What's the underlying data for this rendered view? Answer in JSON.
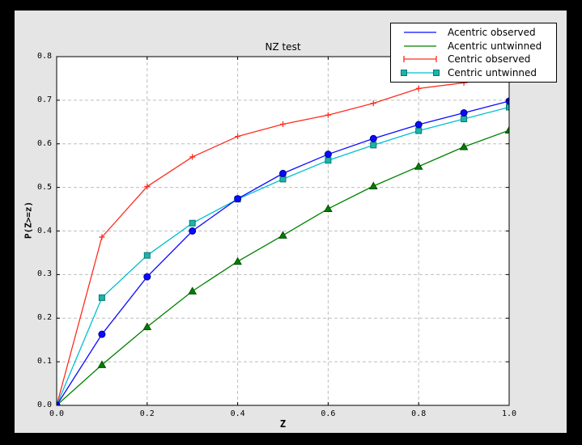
{
  "chart_data": {
    "type": "line",
    "title": "NZ test",
    "xlabel": "Z",
    "ylabel": "P(Z>=z)",
    "xlim": [
      0.0,
      1.0
    ],
    "ylim": [
      0.0,
      0.8
    ],
    "x_tick_values": [
      0.0,
      0.2,
      0.4,
      0.6,
      0.8,
      1.0
    ],
    "x_tick_labels": [
      "0.0",
      "0.2",
      "0.4",
      "0.6",
      "0.8",
      "1.0"
    ],
    "y_tick_values": [
      0.0,
      0.1,
      0.2,
      0.3,
      0.4,
      0.5,
      0.6,
      0.7,
      0.8
    ],
    "y_tick_labels": [
      "0.0",
      "0.1",
      "0.2",
      "0.3",
      "0.4",
      "0.5",
      "0.6",
      "0.7",
      "0.8"
    ],
    "grid": true,
    "legend_position": "upper right",
    "x": [
      0.0,
      0.1,
      0.2,
      0.3,
      0.4,
      0.5,
      0.6,
      0.7,
      0.8,
      0.9,
      1.0
    ],
    "series": [
      {
        "name": "Acentric observed",
        "color": "#0a0aff",
        "marker": "circle",
        "marker_fill": "#0a0aff",
        "marker_edge": "#000099",
        "values": [
          0.0,
          0.163,
          0.295,
          0.4,
          0.474,
          0.532,
          0.576,
          0.612,
          0.644,
          0.671,
          0.698
        ]
      },
      {
        "name": "Acentric untwinned",
        "color": "#008000",
        "marker": "triangle",
        "marker_fill": "#008000",
        "marker_edge": "#004d00",
        "values": [
          0.0,
          0.093,
          0.18,
          0.262,
          0.33,
          0.39,
          0.451,
          0.503,
          0.548,
          0.593,
          0.631
        ]
      },
      {
        "name": "Centric observed",
        "color": "#ff2d21",
        "marker": "plus",
        "marker_fill": "none",
        "marker_edge": "#ff2d21",
        "values": [
          0.0,
          0.386,
          0.502,
          0.57,
          0.617,
          0.645,
          0.666,
          0.693,
          0.727,
          0.74,
          0.755
        ]
      },
      {
        "name": "Centric untwinned",
        "color": "#00bfcf",
        "marker": "square",
        "marker_fill": "#20b2aa",
        "marker_edge": "#007a74",
        "values": [
          0.0,
          0.247,
          0.344,
          0.418,
          0.473,
          0.519,
          0.562,
          0.597,
          0.63,
          0.657,
          0.684
        ]
      }
    ],
    "colors": {
      "outer_bg": "#000000",
      "figure_bg": "#e5e5e5",
      "plot_bg": "#ffffff",
      "grid": "#bdbdbd",
      "frame": "#000000"
    }
  }
}
